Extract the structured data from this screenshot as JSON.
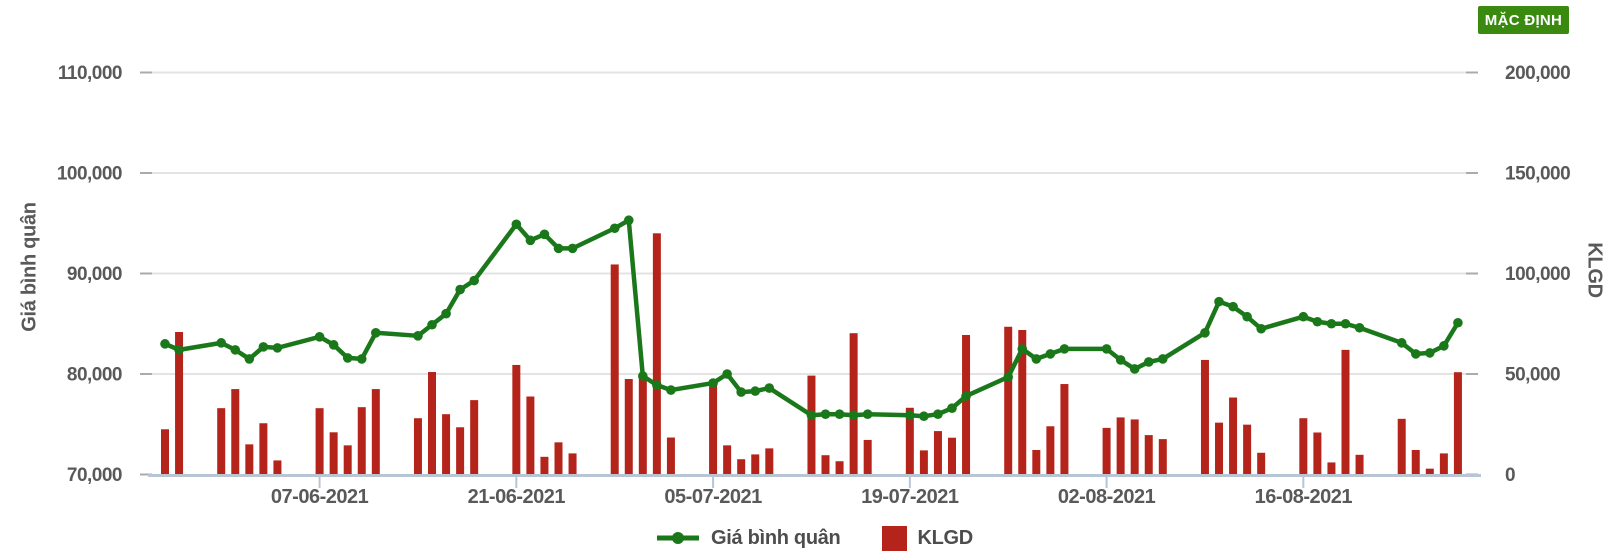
{
  "badge": {
    "label": "MẶC ĐỊNH",
    "bg_color": "#3a8a10"
  },
  "colors": {
    "line_green": "#1a781a",
    "bar_red": "#b5241b",
    "grid": "#e3e3e3",
    "axis_line": "#b8c5d4",
    "tick_dash": "#ababab",
    "axis_text": "#595959"
  },
  "legend": {
    "items": [
      {
        "label": "Giá bình quân",
        "marker": "line-dot",
        "color": "#1a781a"
      },
      {
        "label": "KLGD",
        "marker": "square",
        "color": "#b5241b"
      }
    ]
  },
  "chart_data": {
    "type": "combo",
    "grid": true,
    "legend_position": "bottom",
    "x_type": "date",
    "dates": [
      "27-05-2021",
      "28-05-2021",
      "31-05-2021",
      "01-06-2021",
      "02-06-2021",
      "03-06-2021",
      "04-06-2021",
      "07-06-2021",
      "08-06-2021",
      "09-06-2021",
      "10-06-2021",
      "11-06-2021",
      "14-06-2021",
      "15-06-2021",
      "16-06-2021",
      "17-06-2021",
      "18-06-2021",
      "21-06-2021",
      "22-06-2021",
      "23-06-2021",
      "24-06-2021",
      "25-06-2021",
      "28-06-2021",
      "29-06-2021",
      "30-06-2021",
      "01-07-2021",
      "02-07-2021",
      "05-07-2021",
      "06-07-2021",
      "07-07-2021",
      "08-07-2021",
      "09-07-2021",
      "12-07-2021",
      "13-07-2021",
      "14-07-2021",
      "15-07-2021",
      "16-07-2021",
      "19-07-2021",
      "20-07-2021",
      "21-07-2021",
      "22-07-2021",
      "23-07-2021",
      "26-07-2021",
      "27-07-2021",
      "28-07-2021",
      "29-07-2021",
      "30-07-2021",
      "02-08-2021",
      "03-08-2021",
      "04-08-2021",
      "05-08-2021",
      "06-08-2021",
      "09-08-2021",
      "10-08-2021",
      "11-08-2021",
      "12-08-2021",
      "13-08-2021",
      "16-08-2021",
      "17-08-2021",
      "18-08-2021",
      "19-08-2021",
      "20-08-2021",
      "23-08-2021",
      "24-08-2021",
      "25-08-2021",
      "26-08-2021",
      "27-08-2021"
    ],
    "series": [
      {
        "name": "Giá bình quân",
        "type": "line",
        "axis": "left",
        "color": "#1a781a",
        "values": [
          83000,
          82400,
          83100,
          82400,
          81500,
          82700,
          82600,
          83700,
          82900,
          81600,
          81500,
          84100,
          83800,
          84900,
          86000,
          88400,
          89300,
          94900,
          93300,
          93900,
          92500,
          92500,
          94500,
          95300,
          79800,
          78900,
          78400,
          79100,
          80000,
          78200,
          78300,
          78600,
          75900,
          76000,
          76000,
          75900,
          76000,
          75900,
          75800,
          76000,
          76600,
          77800,
          79700,
          82500,
          81500,
          82000,
          82500,
          82500,
          81400,
          80500,
          81200,
          81500,
          84100,
          87200,
          86700,
          85700,
          84500,
          85700,
          85200,
          85000,
          85000,
          84600,
          83100,
          82000,
          82100,
          82800,
          85100
        ]
      },
      {
        "name": "KLGD",
        "type": "bar",
        "axis": "right",
        "color": "#b5241b",
        "values": [
          22500,
          70900,
          33000,
          42500,
          15000,
          25500,
          7000,
          33000,
          21000,
          14500,
          33500,
          42500,
          28000,
          51000,
          30000,
          23500,
          37000,
          54500,
          38800,
          8800,
          16000,
          10500,
          104500,
          47500,
          49200,
          120000,
          18400,
          45000,
          14500,
          7600,
          10000,
          13000,
          49200,
          9600,
          6600,
          70300,
          17200,
          33200,
          12000,
          21600,
          18300,
          69400,
          73500,
          71900,
          12200,
          24000,
          45000,
          23200,
          28400,
          27400,
          19600,
          17600,
          57000,
          25800,
          38300,
          24800,
          10800,
          28000,
          20900,
          6000,
          62000,
          9800,
          27700,
          12200,
          2900,
          10500,
          50900
        ]
      }
    ],
    "left_axis": {
      "title": "Giá bình quân",
      "min": 70000,
      "max": 110000,
      "tick_values": [
        70000,
        80000,
        90000,
        100000,
        110000
      ],
      "tick_labels": [
        "70,000",
        "80,000",
        "90,000",
        "100,000",
        "110,000"
      ]
    },
    "right_axis": {
      "title": "KLGD",
      "min": 0,
      "max": 200000,
      "tick_values": [
        0,
        50000,
        100000,
        150000,
        200000
      ],
      "tick_labels": [
        "0",
        "50,000",
        "100,000",
        "150,000",
        "200,000"
      ]
    },
    "x_tick_labels": [
      "07-06-2021",
      "21-06-2021",
      "05-07-2021",
      "19-07-2021",
      "02-08-2021",
      "16-08-2021"
    ]
  }
}
